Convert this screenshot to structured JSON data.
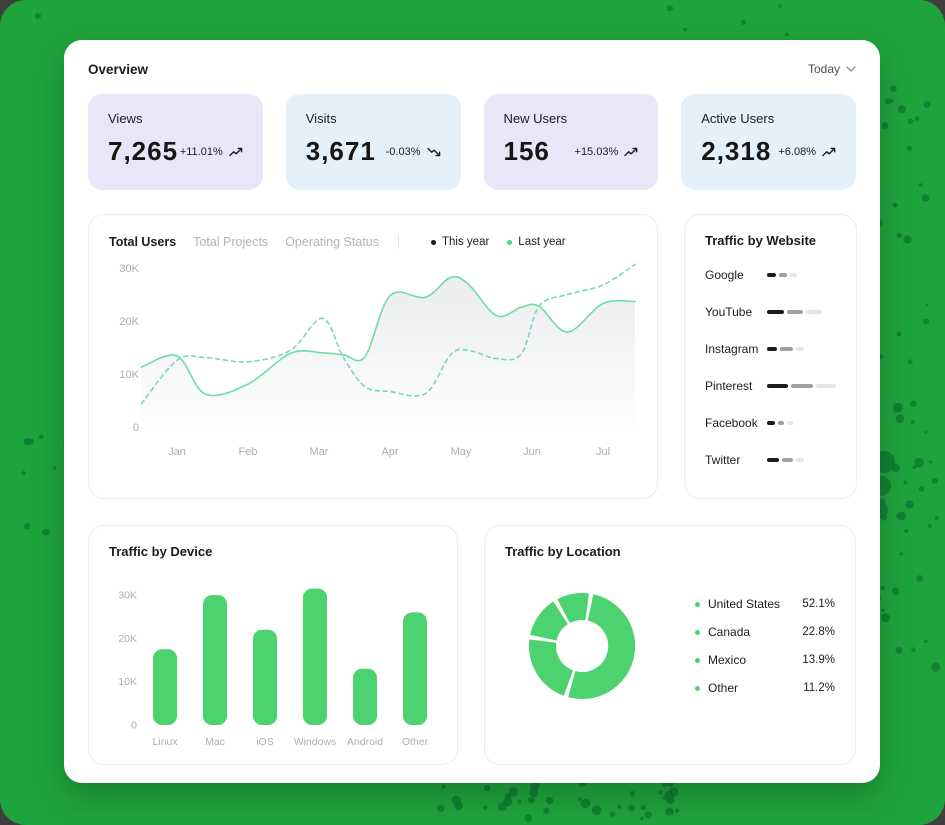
{
  "header": {
    "title": "Overview",
    "period": "Today"
  },
  "stats": [
    {
      "label": "Views",
      "value": "7,265",
      "delta": "+11.01%",
      "trend": "up",
      "bg": "#E8E7FA"
    },
    {
      "label": "Visits",
      "value": "3,671",
      "delta": "-0.03%",
      "trend": "down",
      "bg": "#E4F1FA"
    },
    {
      "label": "New Users",
      "value": "156",
      "delta": "+15.03%",
      "trend": "up",
      "bg": "#E8E7FA"
    },
    {
      "label": "Active Users",
      "value": "2,318",
      "delta": "+6.08%",
      "trend": "up",
      "bg": "#E4F1FA"
    }
  ],
  "users_panel": {
    "tabs": [
      {
        "label": "Total Users",
        "active": true
      },
      {
        "label": "Total Projects",
        "active": false
      },
      {
        "label": "Operating Status",
        "active": false
      }
    ],
    "legend": [
      {
        "label": "This year",
        "color": "#1c1c1c"
      },
      {
        "label": "Last year",
        "color": "#4BD889"
      }
    ]
  },
  "chart_data": [
    {
      "id": "total-users-line",
      "type": "line",
      "title": "Total Users",
      "x_months": [
        0.5,
        1.0,
        1.4,
        2.0,
        2.6,
        3.05,
        3.35,
        3.65,
        4.0,
        4.5,
        4.85,
        5.1,
        5.5,
        5.85,
        6.1,
        6.5,
        7.0,
        7.45
      ],
      "series": [
        {
          "name": "This year",
          "style": "solid",
          "color": "#6FDCA4",
          "values": [
            11.3,
            13.4,
            6.2,
            8.1,
            13.9,
            14.0,
            13.6,
            13.3,
            24.8,
            24.5,
            28.2,
            27.0,
            21.0,
            22.6,
            22.8,
            17.9,
            23.3,
            23.7
          ]
        },
        {
          "name": "Last year",
          "style": "dashed",
          "color": "#74D9BC",
          "values": [
            4.4,
            12.6,
            13.1,
            12.3,
            14.5,
            20.5,
            13.0,
            7.6,
            6.7,
            6.3,
            13.6,
            14.5,
            12.9,
            13.8,
            22.8,
            25.0,
            26.8,
            30.7
          ]
        }
      ],
      "unit": "K",
      "xticks": [
        "Jan",
        "Feb",
        "Mar",
        "Apr",
        "May",
        "Jun",
        "Jul"
      ],
      "yticks": [
        {
          "v": 0,
          "label": "0"
        },
        {
          "v": 10,
          "label": "10K"
        },
        {
          "v": 20,
          "label": "20K"
        },
        {
          "v": 30,
          "label": "30K"
        }
      ],
      "ylim": [
        0,
        32
      ],
      "grid": false,
      "legend_position": "top-right"
    },
    {
      "id": "traffic-by-device",
      "type": "bar",
      "title": "Traffic by Device",
      "categories": [
        "Linux",
        "Mac",
        "iOS",
        "Windows",
        "Android",
        "Other"
      ],
      "values": [
        17.5,
        30,
        22,
        31.5,
        13,
        26
      ],
      "unit": "K",
      "yticks": [
        {
          "v": 0,
          "label": "0"
        },
        {
          "v": 10,
          "label": "10K"
        },
        {
          "v": 20,
          "label": "20K"
        },
        {
          "v": 30,
          "label": "30K"
        }
      ],
      "ylim": [
        0,
        33
      ],
      "bar_color": "#4CD36F"
    },
    {
      "id": "traffic-by-location",
      "type": "pie",
      "title": "Traffic by Location",
      "categories": [
        "United States",
        "Canada",
        "Mexico",
        "Other"
      ],
      "values": [
        52.1,
        22.8,
        13.9,
        11.2
      ],
      "labels": [
        "52.1%",
        "22.8%",
        "13.9%",
        "11.2%"
      ],
      "color": "#4CD36F",
      "donut": true
    },
    {
      "id": "traffic-by-website",
      "type": "table",
      "title": "Traffic by Website",
      "rows": [
        {
          "label": "Google",
          "segments": [
            9,
            8,
            7
          ]
        },
        {
          "label": "YouTube",
          "segments": [
            17,
            16,
            16
          ]
        },
        {
          "label": "Instagram",
          "segments": [
            10,
            13,
            8
          ]
        },
        {
          "label": "Pinterest",
          "segments": [
            21,
            22,
            20
          ]
        },
        {
          "label": "Facebook",
          "segments": [
            8,
            6,
            6
          ]
        },
        {
          "label": "Twitter",
          "segments": [
            12,
            11,
            8
          ]
        }
      ],
      "segment_colors": [
        "#1c1c1c",
        "#9AA0A6",
        "#E3E5E8"
      ]
    }
  ],
  "colors": {
    "background_green": "#1FA43D",
    "dot_green": "#0F7D31",
    "accent_green": "#4CD36F",
    "stat_bg_lavender": "#E8E7FA",
    "stat_bg_blue": "#E4F1FA",
    "muted_text": "#A9AEB6"
  }
}
